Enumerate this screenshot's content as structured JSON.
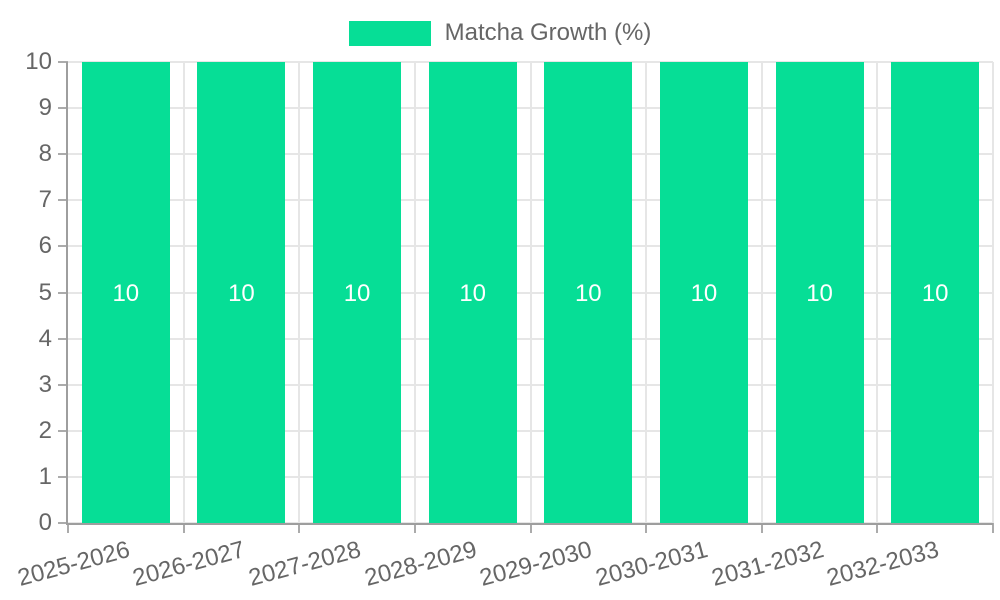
{
  "legend": {
    "label": "Matcha Growth (%)",
    "swatch_color": "#06DE96"
  },
  "chart_data": {
    "type": "bar",
    "title": "",
    "xlabel": "",
    "ylabel": "",
    "categories": [
      "2025-2026",
      "2026-2027",
      "2027-2028",
      "2028-2029",
      "2029-2030",
      "2030-2031",
      "2031-2032",
      "2032-2033"
    ],
    "series": [
      {
        "name": "Matcha Growth (%)",
        "color": "#06DE96",
        "values": [
          10,
          10,
          10,
          10,
          10,
          10,
          10,
          10
        ],
        "data_labels": [
          "10",
          "10",
          "10",
          "10",
          "10",
          "10",
          "10",
          "10"
        ]
      }
    ],
    "ylim": [
      0,
      10
    ],
    "y_ticks": [
      "0",
      "1",
      "2",
      "3",
      "4",
      "5",
      "6",
      "7",
      "8",
      "9",
      "10"
    ],
    "grid": true,
    "legend_position": "top",
    "x_label_rotation_deg": -15,
    "colors": {
      "grid": "#E6E6E6",
      "axis": "#9E9E9E",
      "tick_mark": "#ABABAB",
      "tick_text": "#666666",
      "bar_label": "#FFFFFF"
    }
  }
}
